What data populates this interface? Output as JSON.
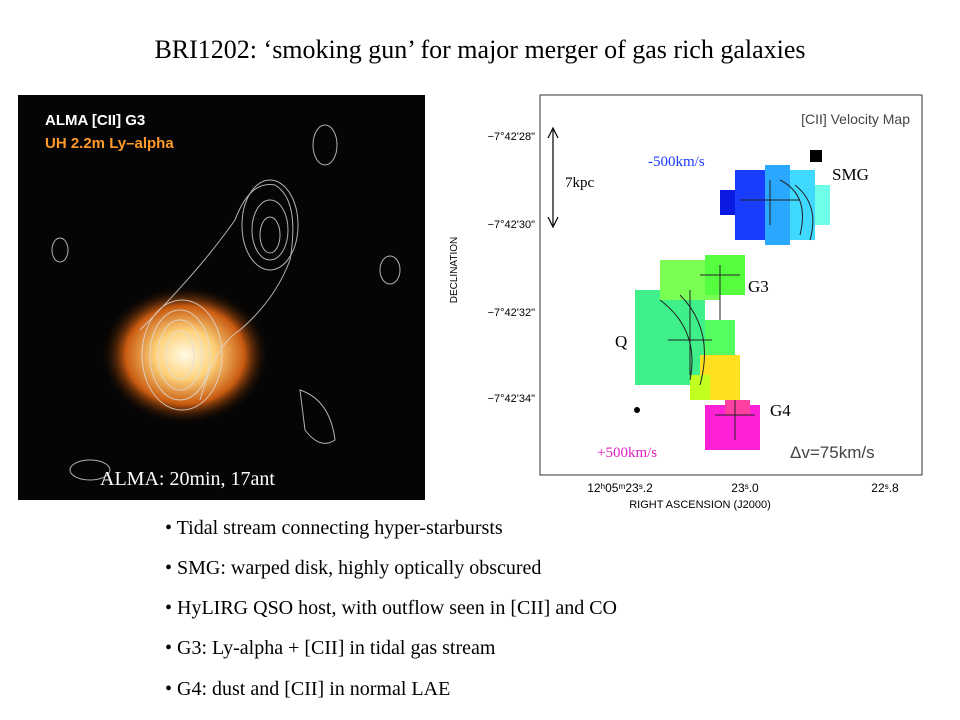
{
  "title": "BRI1202: ‘smoking gun’ for major merger of gas rich galaxies",
  "left_image": {
    "legend": [
      "ALMA [CII] G3",
      "UH 2.2m Ly–alpha"
    ],
    "caption": "ALMA: 20min, 17ant"
  },
  "velocity_map": {
    "title": "[CII] Velocity Map",
    "y_axis_label": "DECLINATION",
    "x_axis_label": "RIGHT ASCENSION (J2000)",
    "y_tick_labels": [
      "−7°42'28\"",
      "−7°42'30\"",
      "−7°42'32\"",
      "−7°42'34\""
    ],
    "x_tick_labels": [
      "12ʰ05ᵐ23ˢ.2",
      "23ˢ.0",
      "22ˢ.8"
    ],
    "resolution": "Δv=75km/s"
  },
  "annotations": {
    "blue_velocity": "-500km/s",
    "scale": "7kpc",
    "smg": "SMG",
    "g3": "G3",
    "q": "Q",
    "g4": "G4",
    "red_velocity": "+500km/s"
  },
  "bullets": [
    "Tidal stream connecting hyper-starbursts",
    "SMG: warped disk, highly optically obscured",
    "HyLIRG QSO host, with outflow seen in [CII] and CO",
    "G3: Ly-alpha + [CII]  in tidal gas stream",
    "G4: dust and [CII] in normal LAE"
  ]
}
